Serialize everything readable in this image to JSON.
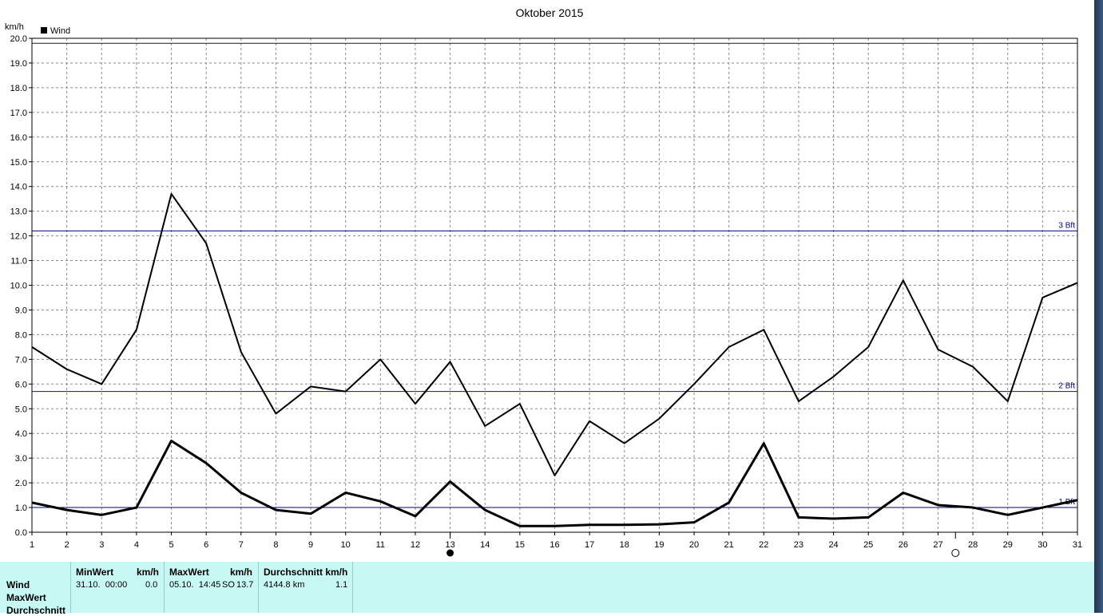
{
  "chart_data": {
    "type": "line",
    "title": "Oktober 2015",
    "ylabel": "km/h",
    "legend": "Wind",
    "legend_placement": "top-left",
    "grid": true,
    "ylim": [
      0,
      20
    ],
    "x": [
      1,
      2,
      3,
      4,
      5,
      6,
      7,
      8,
      9,
      10,
      11,
      12,
      13,
      14,
      15,
      16,
      17,
      18,
      19,
      20,
      21,
      22,
      23,
      24,
      25,
      26,
      27,
      28,
      29,
      30,
      31
    ],
    "y_ticks": [
      "0.0",
      "1.0",
      "2.0",
      "3.0",
      "4.0",
      "5.0",
      "6.0",
      "7.0",
      "8.0",
      "9.0",
      "10.0",
      "11.0",
      "12.0",
      "13.0",
      "14.0",
      "15.0",
      "16.0",
      "17.0",
      "18.0",
      "19.0",
      "20.0"
    ],
    "series": [
      {
        "values": [
          7.5,
          6.6,
          6.0,
          8.2,
          13.7,
          11.7,
          7.3,
          4.8,
          5.9,
          5.7,
          7.0,
          5.2,
          6.9,
          4.3,
          5.2,
          2.3,
          4.5,
          3.6,
          4.6,
          6.0,
          7.5,
          8.2,
          5.3,
          6.3,
          7.5,
          10.2,
          7.4,
          6.7,
          5.3,
          9.5,
          10.1
        ],
        "width": 2
      },
      {
        "values": [
          1.2,
          0.9,
          0.7,
          1.0,
          3.7,
          2.8,
          1.6,
          0.9,
          0.75,
          1.6,
          1.25,
          0.65,
          2.05,
          0.9,
          0.25,
          0.25,
          0.3,
          0.3,
          0.32,
          0.4,
          1.2,
          3.6,
          0.6,
          0.55,
          0.6,
          1.6,
          1.1,
          1.0,
          0.7,
          1.0,
          1.3
        ],
        "width": 3
      }
    ],
    "reference_lines": [
      {
        "label": "3 Bft",
        "value": 12.2,
        "color": "#00008b"
      },
      {
        "label": "2 Bft",
        "value": 5.7,
        "color": "#1a1a5a"
      },
      {
        "label": "1 Bft",
        "value": 1.0,
        "color": "#00008b"
      }
    ],
    "top_line_value": 19.8,
    "moon_markers": [
      {
        "x": 13,
        "phase": "new-moon"
      },
      {
        "x": 27.5,
        "phase": "full-moon"
      }
    ]
  },
  "stats": {
    "row_labels": [
      "Wind",
      "MaxWert",
      "Durchschnitt"
    ],
    "min": {
      "header": "MinWert",
      "unit": "km/h",
      "date": "31.10.  00:00",
      "value": "0.0"
    },
    "max": {
      "header": "MaxWert",
      "unit": "km/h",
      "date": "05.10.  14:45",
      "dir": "SO",
      "value": "13.7"
    },
    "avg": {
      "header": "Durchschnitt km/h",
      "distance": "4144.8 km",
      "value": "1.1"
    }
  }
}
